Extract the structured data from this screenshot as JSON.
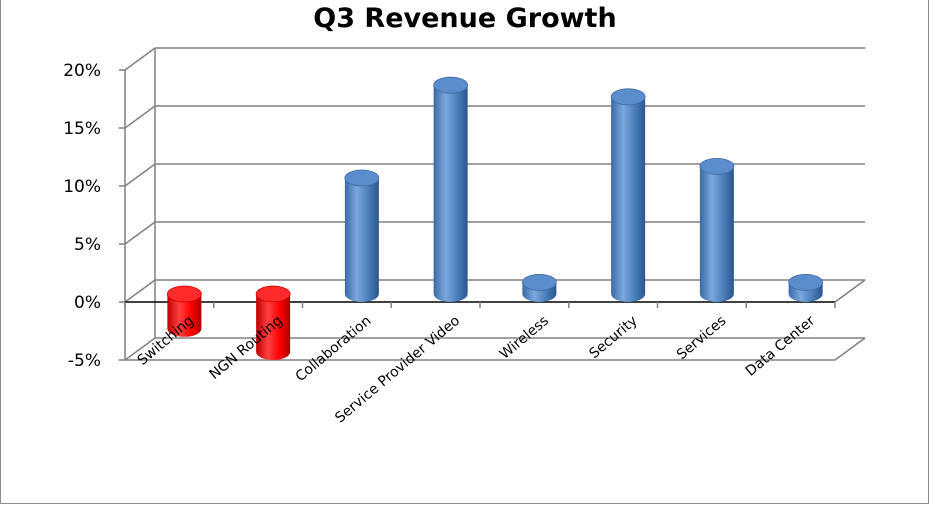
{
  "chart_data": {
    "type": "bar",
    "title": "Q3 Revenue Growth",
    "xlabel": "",
    "ylabel": "",
    "categories": [
      "Switching",
      "NGN Routing",
      "Collaboration",
      "Service Provider Video",
      "Wireless",
      "Security",
      "Services",
      "Data Center"
    ],
    "values": [
      -3,
      -5,
      10,
      18,
      1,
      17,
      11,
      1
    ],
    "ylim": [
      -5,
      20
    ],
    "yticks": [
      "-5%",
      "0%",
      "5%",
      "10%",
      "15%",
      "20%"
    ],
    "grid": true,
    "legend": "none",
    "three_d": true,
    "colors": {
      "positive": "#4a7ebb",
      "negative": "#ff0000",
      "grid": "#808080"
    }
  }
}
